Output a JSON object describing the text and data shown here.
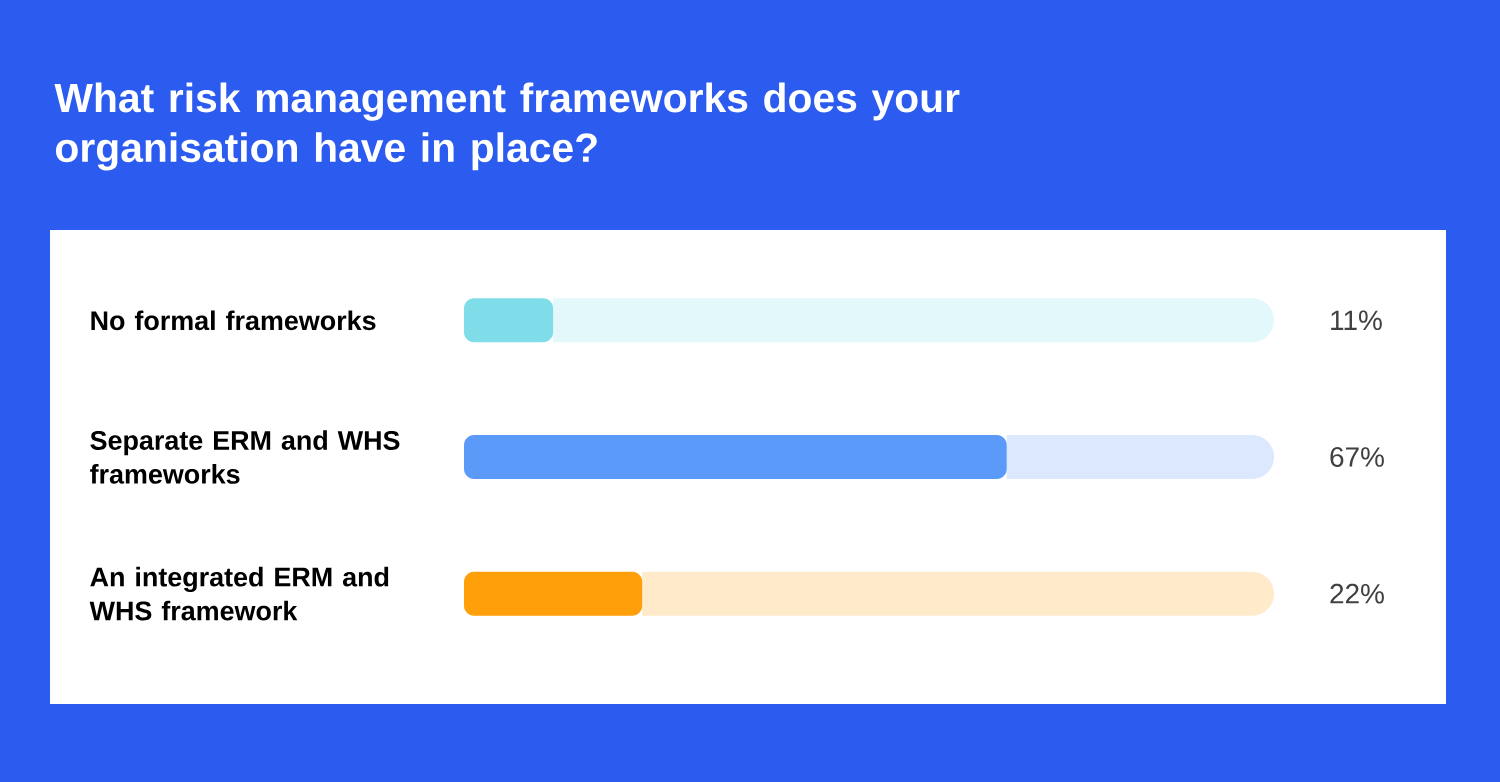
{
  "chart_data": {
    "type": "bar",
    "orientation": "horizontal",
    "stacked": true,
    "title": "What risk management frameworks does your organisation have in place?",
    "categories": [
      "No formal frameworks",
      "Separate ERM and WHS frameworks",
      "An integrated ERM and WHS framework"
    ],
    "series": [
      {
        "values": [
          11,
          67,
          22
        ],
        "colors": [
          "#7fdde9",
          "#5b9af8",
          "#ff9f0a"
        ],
        "value_labels": [
          "11%",
          "67%",
          "22%"
        ]
      },
      {
        "values": [
          89,
          33,
          78
        ],
        "colors": [
          "#e3f8fa",
          "#dbe8fd",
          "#ffeaca"
        ]
      }
    ],
    "xlim": [
      0,
      100
    ]
  }
}
